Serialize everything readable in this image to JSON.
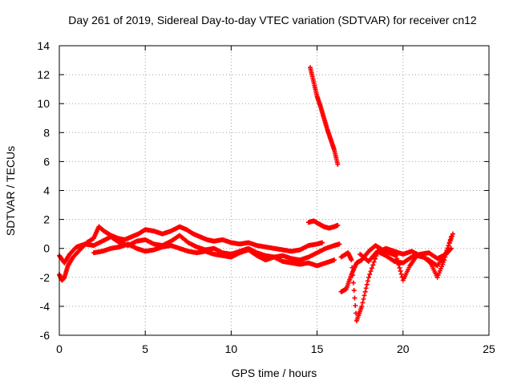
{
  "chart_data": {
    "type": "scatter",
    "title": "Day 261 of 2019, Sidereal Day-to-day VTEC variation (SDTVAR) for receiver cn12",
    "xlabel": "GPS time / hours",
    "ylabel": "SDTVAR / TECUs",
    "xlim": [
      0,
      25
    ],
    "ylim": [
      -6,
      14
    ],
    "xticks": [
      0,
      5,
      10,
      15,
      20,
      25
    ],
    "yticks": [
      -6,
      -4,
      -2,
      0,
      2,
      4,
      6,
      8,
      10,
      12,
      14
    ],
    "xtick_labels": [
      "0",
      "5",
      "10",
      "15",
      "20",
      "25"
    ],
    "ytick_labels": [
      "-6",
      "-4",
      "-2",
      "0",
      "2",
      "4",
      "6",
      "8",
      "10",
      "12",
      "14"
    ],
    "grid": true,
    "marker": "+",
    "color": "#ff0000",
    "series": [
      {
        "name": "trace-a",
        "x": [
          0.0,
          0.15,
          0.3,
          0.5,
          0.8,
          1.2,
          1.6,
          2.0,
          2.3,
          2.6,
          3.0,
          3.4,
          3.8,
          4.2,
          4.6,
          5.0,
          5.5,
          6.0,
          6.5,
          7.0,
          7.4,
          7.8,
          8.2,
          8.6,
          9.0,
          9.5,
          10.0,
          10.5,
          11.0,
          11.5,
          12.0,
          12.5,
          13.0,
          13.5,
          14.0,
          14.5,
          15.0,
          15.3
        ],
        "y": [
          -1.8,
          -2.2,
          -2.0,
          -1.2,
          -0.6,
          -0.1,
          0.4,
          0.7,
          1.5,
          1.2,
          0.9,
          0.7,
          0.6,
          0.8,
          1.0,
          1.3,
          1.2,
          1.0,
          1.2,
          1.5,
          1.3,
          1.0,
          0.8,
          0.6,
          0.5,
          0.6,
          0.4,
          0.3,
          0.4,
          0.2,
          0.1,
          0.0,
          -0.1,
          -0.2,
          -0.1,
          0.2,
          0.3,
          0.4
        ]
      },
      {
        "name": "trace-b",
        "x": [
          0.0,
          0.3,
          0.6,
          1.0,
          1.5,
          2.0,
          2.5,
          3.0,
          3.5,
          4.0,
          4.5,
          5.0,
          5.5,
          6.0,
          6.5,
          7.0,
          7.5,
          8.0,
          8.5,
          9.0,
          9.5,
          10.0,
          10.5,
          11.0,
          11.5,
          12.0,
          12.5,
          13.0,
          13.5,
          14.0,
          14.5,
          15.0,
          15.5,
          16.0,
          16.3
        ],
        "y": [
          -0.5,
          -1.0,
          -0.4,
          0.1,
          0.3,
          0.2,
          0.5,
          0.8,
          0.4,
          0.2,
          0.5,
          0.6,
          0.3,
          0.2,
          0.5,
          0.9,
          0.4,
          0.1,
          -0.1,
          0.0,
          -0.3,
          -0.4,
          -0.2,
          0.0,
          -0.3,
          -0.5,
          -0.6,
          -0.5,
          -0.7,
          -0.8,
          -0.6,
          -0.3,
          0.0,
          0.2,
          0.3
        ]
      },
      {
        "name": "trace-c",
        "x": [
          2.0,
          2.5,
          3.0,
          3.5,
          4.0,
          4.5,
          5.0,
          5.5,
          6.0,
          6.5,
          7.0,
          7.5,
          8.0,
          8.5,
          9.0,
          9.5,
          10.0,
          10.5,
          11.0,
          11.5,
          12.0,
          12.5,
          13.0,
          13.5,
          14.0,
          14.5,
          15.0,
          15.5,
          16.0
        ],
        "y": [
          -0.3,
          -0.2,
          0.0,
          0.1,
          0.3,
          0.0,
          -0.2,
          -0.1,
          0.1,
          0.2,
          0.0,
          -0.2,
          -0.3,
          -0.2,
          -0.4,
          -0.5,
          -0.6,
          -0.3,
          -0.1,
          -0.5,
          -0.8,
          -0.6,
          -0.9,
          -1.0,
          -1.1,
          -1.0,
          -1.2,
          -1.0,
          -0.8
        ]
      },
      {
        "name": "trace-d",
        "x": [
          14.5,
          14.8,
          15.1,
          15.4,
          15.7,
          16.0,
          16.2
        ],
        "y": [
          1.8,
          1.9,
          1.7,
          1.5,
          1.4,
          1.5,
          1.6
        ]
      },
      {
        "name": "trace-e",
        "x": [
          14.6,
          14.8,
          15.0,
          15.2,
          15.4,
          15.6,
          15.8,
          16.0,
          16.2
        ],
        "y": [
          12.5,
          11.5,
          10.5,
          9.8,
          9.0,
          8.2,
          7.5,
          6.8,
          5.8
        ]
      },
      {
        "name": "trace-f",
        "x": [
          16.4,
          16.7,
          17.0,
          17.3,
          17.6,
          18.0,
          18.4,
          18.8,
          19.2,
          19.6,
          20.0,
          20.4,
          20.8,
          21.2,
          21.6,
          22.0,
          22.4,
          22.8
        ],
        "y": [
          -3.0,
          -2.8,
          -1.8,
          -1.0,
          -0.8,
          -0.2,
          0.2,
          -0.1,
          -0.3,
          -0.5,
          -2.2,
          -1.2,
          -0.5,
          -0.6,
          -1.0,
          -2.0,
          -0.8,
          0.8
        ]
      },
      {
        "name": "trace-g",
        "x": [
          16.4,
          16.8,
          17.0,
          17.3,
          17.6,
          18.0,
          18.5,
          19.0,
          19.5,
          20.0,
          20.5,
          21.0,
          21.5,
          22.0,
          22.5,
          22.9
        ],
        "y": [
          -0.6,
          -0.3,
          -0.8,
          -5.0,
          -4.0,
          -2.0,
          -0.3,
          0.0,
          -0.2,
          -0.4,
          -0.2,
          -0.5,
          -0.8,
          -1.2,
          -0.3,
          1.0
        ]
      },
      {
        "name": "trace-h",
        "x": [
          17.5,
          18.0,
          18.5,
          19.0,
          19.5,
          20.0,
          20.5,
          21.0,
          21.5,
          22.0,
          22.5,
          22.8
        ],
        "y": [
          -0.4,
          -0.9,
          -0.2,
          -0.5,
          -0.9,
          -1.0,
          -0.6,
          -0.4,
          -0.3,
          -0.7,
          -0.4,
          0.0
        ]
      }
    ]
  }
}
